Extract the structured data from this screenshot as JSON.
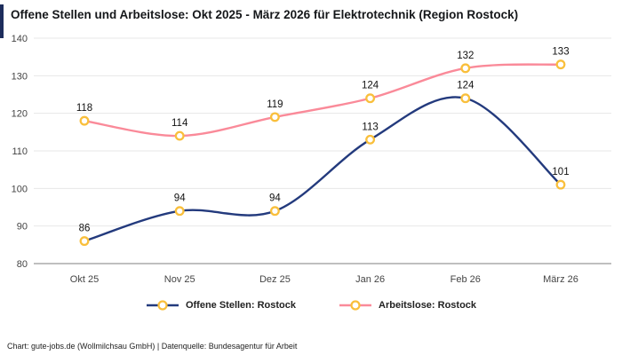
{
  "title": "Offene Stellen und Arbeitslose: Okt 2025 - März 2026 für Elektrotechnik (Region Rostock)",
  "footer": "Chart: gute-jobs.de (Wollmilchsau GmbH) | Datenquelle: Bundesagentur für Arbeit",
  "colors": {
    "accent": "#1d2d5c",
    "grid": "#e7e7e7",
    "axis": "#999999",
    "marker_stroke": "#f9bf3b",
    "marker_fill": "#ffffff",
    "tick_text": "#444444",
    "label_text": "#111111"
  },
  "chart_data": {
    "type": "line",
    "categories": [
      "Okt 25",
      "Nov 25",
      "Dez 25",
      "Jan 26",
      "Feb 26",
      "März 26"
    ],
    "series": [
      {
        "name": "Offene Stellen: Rostock",
        "values": [
          86,
          94,
          94,
          113,
          124,
          101
        ],
        "color": "#233a7d"
      },
      {
        "name": "Arbeitslose: Rostock",
        "values": [
          118,
          114,
          119,
          124,
          132,
          133
        ],
        "color": "#fa8a99"
      }
    ],
    "title": "Offene Stellen und Arbeitslose: Okt 2025 - März 2026 für Elektrotechnik (Region Rostock)",
    "xlabel": "",
    "ylabel": "",
    "ylim": [
      80,
      140
    ],
    "ytick_step": 10,
    "grid": "horizontal",
    "legend_position": "bottom",
    "marker": "circle-gold-ring",
    "data_labels": true
  }
}
